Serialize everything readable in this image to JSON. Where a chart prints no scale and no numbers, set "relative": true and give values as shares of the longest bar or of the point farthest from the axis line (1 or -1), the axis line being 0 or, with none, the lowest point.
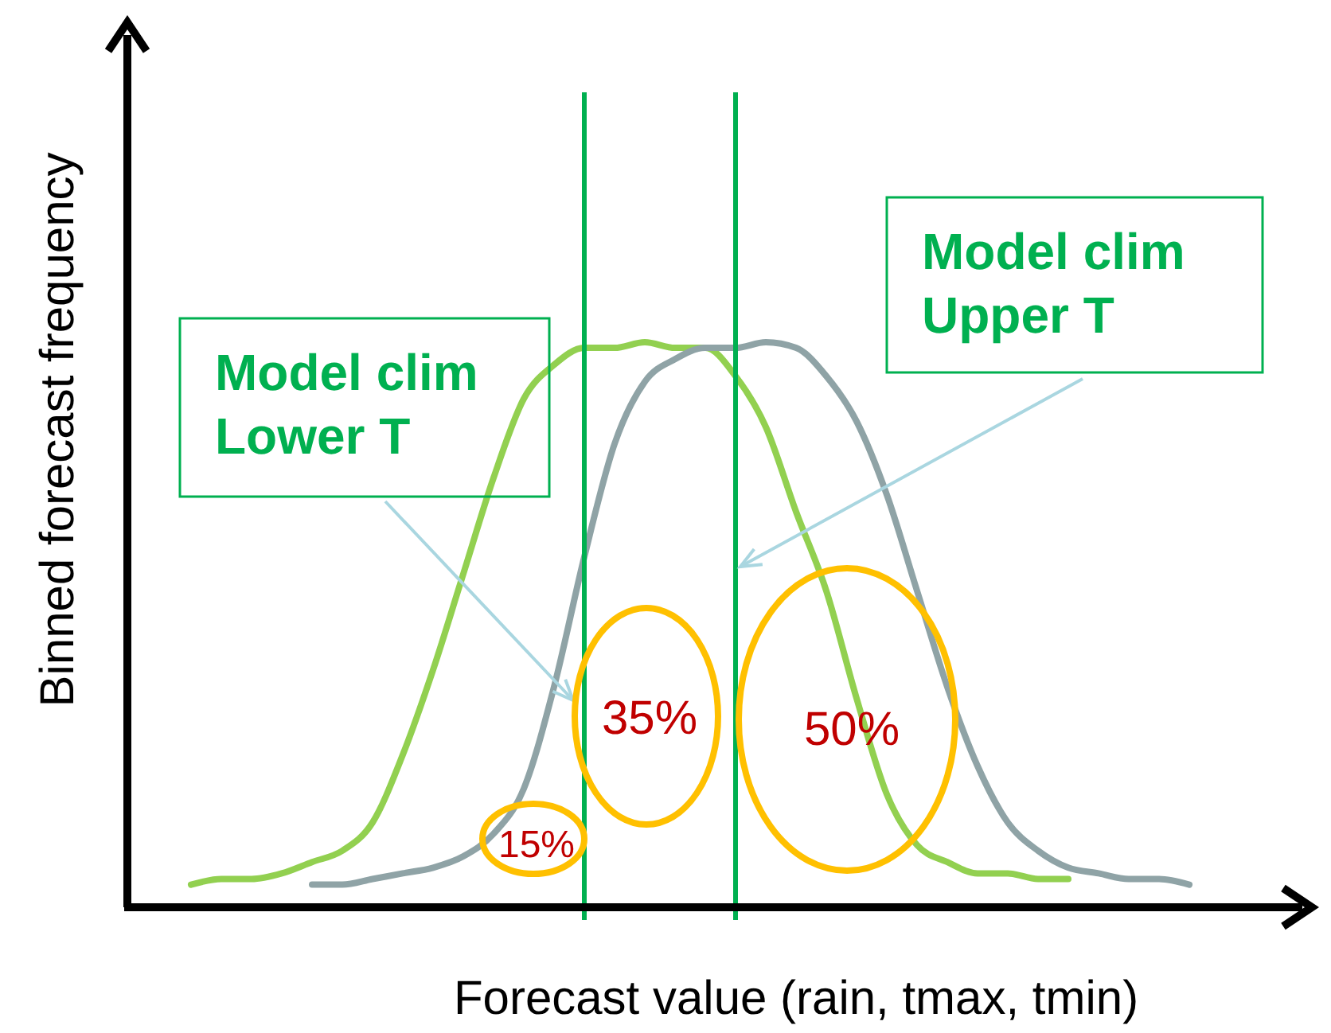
{
  "chart_data": {
    "type": "line",
    "relative": true,
    "xlabel": "Forecast value (rain, tmax, tmin)",
    "ylabel": "Binned forecast frequency",
    "categories": [
      null,
      null,
      null,
      null,
      null,
      null,
      null,
      null,
      null,
      null,
      null,
      null,
      null,
      null,
      null,
      null,
      null,
      null,
      null,
      null,
      null,
      null,
      null,
      null,
      null,
      null,
      null,
      null,
      null,
      null,
      null,
      null,
      null,
      null
    ],
    "series": [
      {
        "color": "#92d050",
        "values": [
          0.04,
          0.05,
          0.05,
          0.06,
          0.08,
          0.1,
          0.15,
          0.27,
          0.42,
          0.59,
          0.76,
          0.9,
          0.96,
          0.99,
          0.99,
          1,
          0.99,
          0.99,
          0.94,
          0.85,
          0.7,
          0.56,
          0.37,
          0.2,
          0.11,
          0.08,
          0.06,
          0.06,
          0.05,
          0.05,
          null,
          null,
          null,
          null
        ]
      },
      {
        "color": "#8fa3a6",
        "values": [
          null,
          null,
          null,
          null,
          0.04,
          0.04,
          0.05,
          0.06,
          0.07,
          0.09,
          0.13,
          0.21,
          0.39,
          0.62,
          0.82,
          0.93,
          0.97,
          0.99,
          0.99,
          1,
          0.99,
          0.94,
          0.86,
          0.73,
          0.56,
          0.39,
          0.25,
          0.15,
          0.1,
          0.07,
          0.06,
          0.05,
          0.05,
          0.04
        ]
      }
    ],
    "annotations": [
      "Model clim Lower T",
      "Model clim Upper T",
      "15%",
      "35%",
      "50%"
    ],
    "line_style": "solid"
  }
}
